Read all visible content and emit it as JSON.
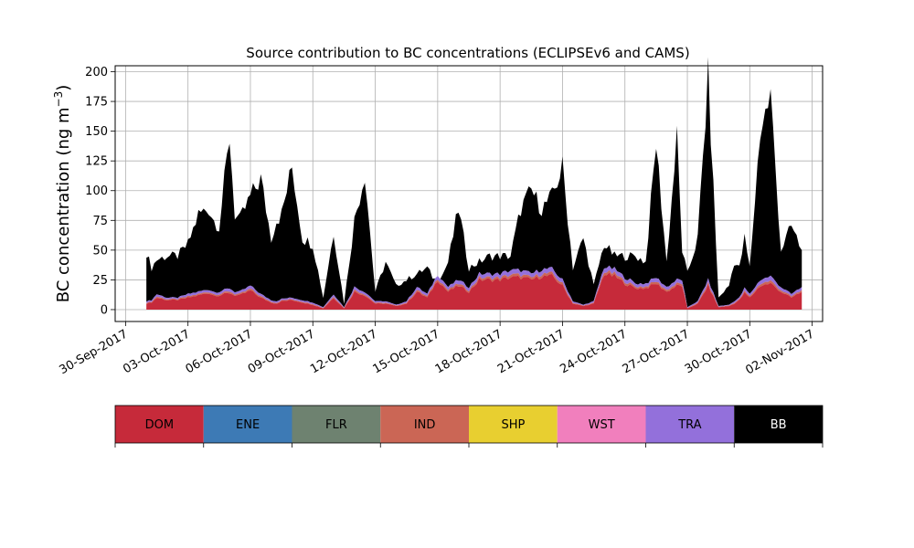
{
  "chart_data": {
    "type": "area",
    "stacked": true,
    "title": "Source contribution to BC concentrations (ECLIPSEv6 and CAMS)",
    "ylabel": "BC concentration (ng m",
    "ylabel_sup": "−3",
    "ylabel_close": ")",
    "xlabel": "",
    "ylim": [
      -10,
      205
    ],
    "xlim": [
      "2017-09-29T12:00",
      "2017-11-02T12:00"
    ],
    "grid": true,
    "yticks": [
      0,
      25,
      50,
      75,
      100,
      125,
      150,
      175,
      200
    ],
    "xticks": [
      {
        "date": "2017-09-30",
        "label": "30-Sep-2017"
      },
      {
        "date": "2017-10-03",
        "label": "03-Oct-2017"
      },
      {
        "date": "2017-10-06",
        "label": "06-Oct-2017"
      },
      {
        "date": "2017-10-09",
        "label": "09-Oct-2017"
      },
      {
        "date": "2017-10-12",
        "label": "12-Oct-2017"
      },
      {
        "date": "2017-10-15",
        "label": "15-Oct-2017"
      },
      {
        "date": "2017-10-18",
        "label": "18-Oct-2017"
      },
      {
        "date": "2017-10-21",
        "label": "21-Oct-2017"
      },
      {
        "date": "2017-10-24",
        "label": "24-Oct-2017"
      },
      {
        "date": "2017-10-27",
        "label": "27-Oct-2017"
      },
      {
        "date": "2017-10-30",
        "label": "30-Oct-2017"
      },
      {
        "date": "2017-11-02",
        "label": "02-Nov-2017"
      }
    ],
    "legend": [
      {
        "label": "DOM",
        "color": "#c62a3a",
        "text_color": "#000000"
      },
      {
        "label": "ENE",
        "color": "#3d7ab5",
        "text_color": "#000000"
      },
      {
        "label": "FLR",
        "color": "#6e8270",
        "text_color": "#000000"
      },
      {
        "label": "IND",
        "color": "#cb6655",
        "text_color": "#000000"
      },
      {
        "label": "SHP",
        "color": "#e8cf30",
        "text_color": "#000000"
      },
      {
        "label": "WST",
        "color": "#f17fbd",
        "text_color": "#000000"
      },
      {
        "label": "TRA",
        "color": "#9370db",
        "text_color": "#000000"
      },
      {
        "label": "BB",
        "color": "#000000",
        "text_color": "#ffffff"
      }
    ],
    "legend_placement": "bottom",
    "keypoints": {
      "x": [
        "2017-10-01T00:00",
        "2017-10-01T06:00",
        "2017-10-01T12:00",
        "2017-10-02T00:00",
        "2017-10-02T12:00",
        "2017-10-03T00:00",
        "2017-10-03T12:00",
        "2017-10-04T00:00",
        "2017-10-04T06:00",
        "2017-10-04T12:00",
        "2017-10-05T00:00",
        "2017-10-05T06:00",
        "2017-10-05T12:00",
        "2017-10-06T00:00",
        "2017-10-06T12:00",
        "2017-10-07T00:00",
        "2017-10-07T06:00",
        "2017-10-07T12:00",
        "2017-10-08T00:00",
        "2017-10-08T12:00",
        "2017-10-09T00:00",
        "2017-10-09T12:00",
        "2017-10-10T00:00",
        "2017-10-10T12:00",
        "2017-10-11T00:00",
        "2017-10-11T12:00",
        "2017-10-12T00:00",
        "2017-10-12T12:00",
        "2017-10-13T00:00",
        "2017-10-13T12:00",
        "2017-10-14T00:00",
        "2017-10-14T12:00",
        "2017-10-15T00:00",
        "2017-10-15T12:00",
        "2017-10-16T00:00",
        "2017-10-16T12:00",
        "2017-10-17T00:00",
        "2017-10-17T12:00",
        "2017-10-18T00:00",
        "2017-10-18T12:00",
        "2017-10-19T00:00",
        "2017-10-19T12:00",
        "2017-10-20T00:00",
        "2017-10-20T12:00",
        "2017-10-21T00:00",
        "2017-10-21T12:00",
        "2017-10-22T00:00",
        "2017-10-22T12:00",
        "2017-10-23T00:00",
        "2017-10-23T12:00",
        "2017-10-24T00:00",
        "2017-10-24T06:00",
        "2017-10-24T12:00",
        "2017-10-25T00:00",
        "2017-10-25T12:00",
        "2017-10-26T00:00",
        "2017-10-26T12:00",
        "2017-10-26T18:00",
        "2017-10-27T00:00",
        "2017-10-27T12:00",
        "2017-10-28T00:00",
        "2017-10-28T12:00",
        "2017-10-29T00:00",
        "2017-10-29T06:00",
        "2017-10-29T12:00",
        "2017-10-29T18:00",
        "2017-10-30T00:00",
        "2017-10-30T12:00",
        "2017-10-31T00:00",
        "2017-10-31T12:00",
        "2017-11-01T00:00",
        "2017-11-01T12:00"
      ],
      "total": [
        48,
        35,
        42,
        45,
        45,
        55,
        80,
        85,
        75,
        70,
        145,
        80,
        75,
        95,
        110,
        60,
        75,
        80,
        120,
        60,
        55,
        10,
        65,
        5,
        75,
        115,
        15,
        40,
        20,
        25,
        30,
        35,
        20,
        40,
        85,
        35,
        40,
        45,
        45,
        45,
        85,
        100,
        85,
        95,
        120,
        35,
        60,
        20,
        55,
        45,
        45,
        45,
        45,
        40,
        140,
        40,
        145,
        50,
        30,
        60,
        195,
        10,
        20,
        40,
        35,
        60,
        35,
        150,
        180,
        50,
        70,
        50
      ],
      "dom": [
        5,
        6,
        10,
        8,
        8,
        10,
        12,
        14,
        12,
        12,
        14,
        12,
        12,
        16,
        10,
        6,
        5,
        7,
        8,
        6,
        4,
        1,
        10,
        1,
        15,
        12,
        5,
        5,
        3,
        5,
        15,
        10,
        25,
        15,
        20,
        15,
        25,
        25,
        25,
        27,
        27,
        25,
        28,
        28,
        20,
        5,
        3,
        5,
        30,
        28,
        22,
        20,
        18,
        18,
        22,
        15,
        20,
        20,
        1,
        5,
        20,
        2,
        3,
        5,
        8,
        14,
        10,
        20,
        22,
        15,
        10,
        15
      ],
      "tra": [
        2,
        2,
        3,
        2,
        2,
        3,
        3,
        3,
        3,
        3,
        4,
        3,
        3,
        4,
        3,
        2,
        2,
        2,
        2,
        2,
        2,
        1,
        3,
        1,
        4,
        3,
        2,
        2,
        1,
        2,
        4,
        3,
        5,
        4,
        5,
        4,
        5,
        5,
        5,
        6,
        6,
        5,
        6,
        6,
        5,
        2,
        1,
        2,
        6,
        6,
        5,
        5,
        4,
        4,
        5,
        4,
        5,
        5,
        1,
        2,
        5,
        1,
        1,
        2,
        2,
        4,
        3,
        5,
        6,
        4,
        3,
        4
      ]
    }
  }
}
